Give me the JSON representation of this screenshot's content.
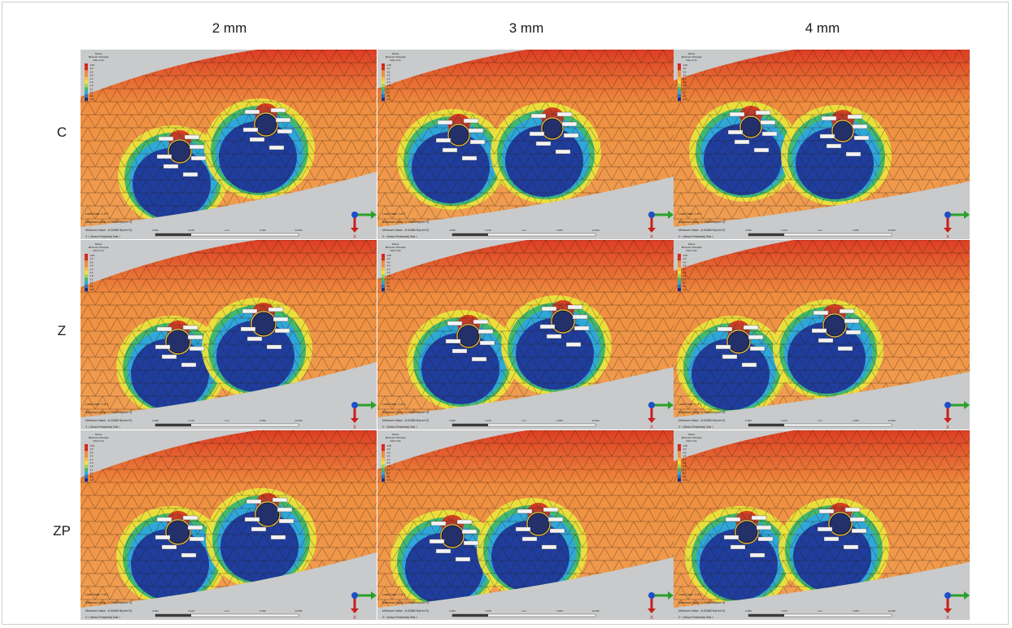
{
  "columns": [
    "2 mm",
    "3 mm",
    "4 mm"
  ],
  "rows": [
    "C",
    "Z",
    "ZP"
  ],
  "panel_text": {
    "legend_title": [
      "Stress",
      "Minimum Principal",
      "N/(mm^2)"
    ],
    "legend_ticks": [
      "-0.00",
      "-0.3",
      "-0.6",
      "-0.9",
      "-1.2",
      "-1.5",
      "-1.8",
      "-2.1",
      "-2.4",
      "-2.7",
      "-3.0"
    ],
    "load_case": "Load Case:   1 of 1",
    "maximum_value": "Maximum Value: 0.73648 N/(mm^2)",
    "minimum_value": "Minimum Value: -6.01885 N/(mm^2)",
    "view_axes": "X < (Hirsch-Presidents) Side >",
    "scale_ticks": [
      "0.000",
      "3.125",
      "mm",
      "6.250",
      "12.500"
    ],
    "axis_x_label": "X"
  },
  "colors": {
    "compressive_high": "#d7261b",
    "orange": "#ef8e3f",
    "yellow": "#e9e33c",
    "green": "#44b86c",
    "cyan": "#2fa7d8",
    "blue": "#1f3d9c",
    "deep_blue": "#1a2f8a",
    "background_gray": "#c9cacb",
    "triad_x": "#c8201c",
    "triad_y": "#2aa02a",
    "triad_z": "#1e50c8"
  }
}
